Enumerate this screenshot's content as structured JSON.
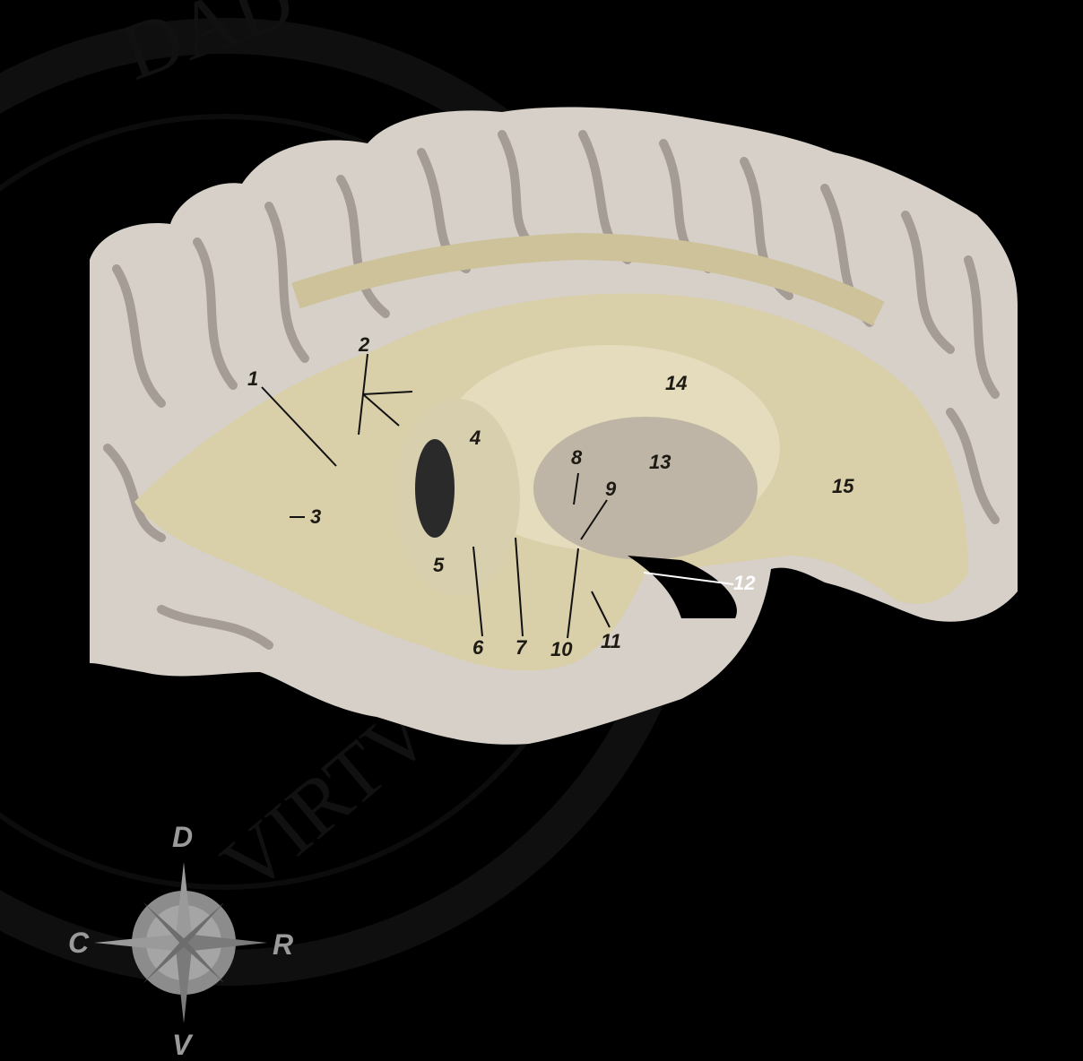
{
  "image": {
    "background_color": "#000000",
    "subject": "brain-specimen",
    "tissue_color": "#ddd3b4"
  },
  "labels": {
    "l1": "1",
    "l2": "2",
    "l3": "3",
    "l4": "4",
    "l5": "5",
    "l6": "6",
    "l7": "7",
    "l8": "8",
    "l9": "9",
    "l10": "10",
    "l11": "11",
    "l12": "12",
    "l13": "13",
    "l14": "14",
    "l15": "15"
  },
  "compass": {
    "dorsal": "D",
    "ventral": "V",
    "caudal": "C",
    "rostral": "R",
    "color": "#9a9a9a"
  },
  "watermark": {
    "text": "DAD · DE · ORVIRTVTENAVI"
  }
}
